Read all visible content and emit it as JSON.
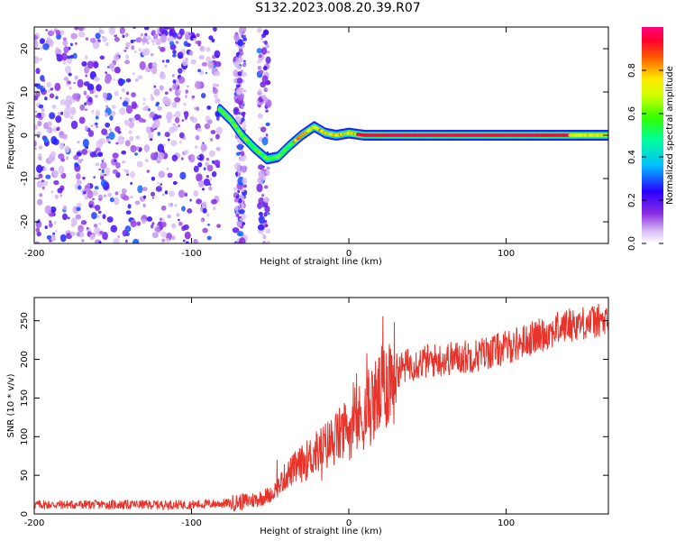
{
  "title": "S132.2023.008.20.39.R07",
  "chart_data": [
    {
      "type": "heatmap",
      "xlabel": "Height of straight line (km)",
      "ylabel": "Frequency (Hz)",
      "xlim": [
        -200,
        165
      ],
      "ylim": [
        -25,
        25
      ],
      "x_ticks": [
        -200,
        -100,
        0,
        100
      ],
      "y_ticks": [
        -20,
        -10,
        0,
        10,
        20
      ],
      "grid": false,
      "colorbar": {
        "label": "Normalized spectral amplitude",
        "range": [
          0.0,
          1.0
        ],
        "ticks": [
          0.0,
          0.2,
          0.4,
          0.6,
          0.8
        ],
        "colormap": "rainbow (white-violet-blue-cyan-green-yellow-red)"
      },
      "signal_ridge": {
        "description_points_km_hz": [
          [
            -82,
            6
          ],
          [
            -75,
            3.5
          ],
          [
            -68,
            0
          ],
          [
            -60,
            -3
          ],
          [
            -52,
            -5.5
          ],
          [
            -45,
            -5
          ],
          [
            -38,
            -2.5
          ],
          [
            -30,
            0
          ],
          [
            -22,
            2
          ],
          [
            -15,
            0.5
          ],
          [
            -8,
            0
          ],
          [
            0,
            0.5
          ],
          [
            10,
            0
          ],
          [
            50,
            0
          ],
          [
            100,
            0
          ],
          [
            140,
            0
          ],
          [
            165,
            0
          ]
        ],
        "peak_amplitude": 1.0
      },
      "noise_region_x": [
        -200,
        -50
      ]
    },
    {
      "type": "line",
      "xlabel": "Height of straight line (km)",
      "ylabel": "SNR (10 * v/v)",
      "xlim": [
        -200,
        165
      ],
      "ylim": [
        0,
        280
      ],
      "x_ticks": [
        -200,
        -100,
        0,
        100
      ],
      "y_ticks": [
        0,
        50,
        100,
        150,
        200,
        250
      ],
      "grid": false,
      "series_color": "#e8332a",
      "series_trend": {
        "x": [
          -200,
          -150,
          -100,
          -75,
          -60,
          -50,
          -45,
          -40,
          -30,
          -20,
          -10,
          0,
          10,
          20,
          25,
          30,
          40,
          60,
          80,
          100,
          120,
          140,
          160,
          165
        ],
        "y": [
          12,
          12,
          12,
          14,
          18,
          25,
          35,
          50,
          65,
          80,
          95,
          110,
          130,
          155,
          175,
          185,
          195,
          200,
          205,
          215,
          230,
          245,
          250,
          245
        ]
      }
    }
  ]
}
